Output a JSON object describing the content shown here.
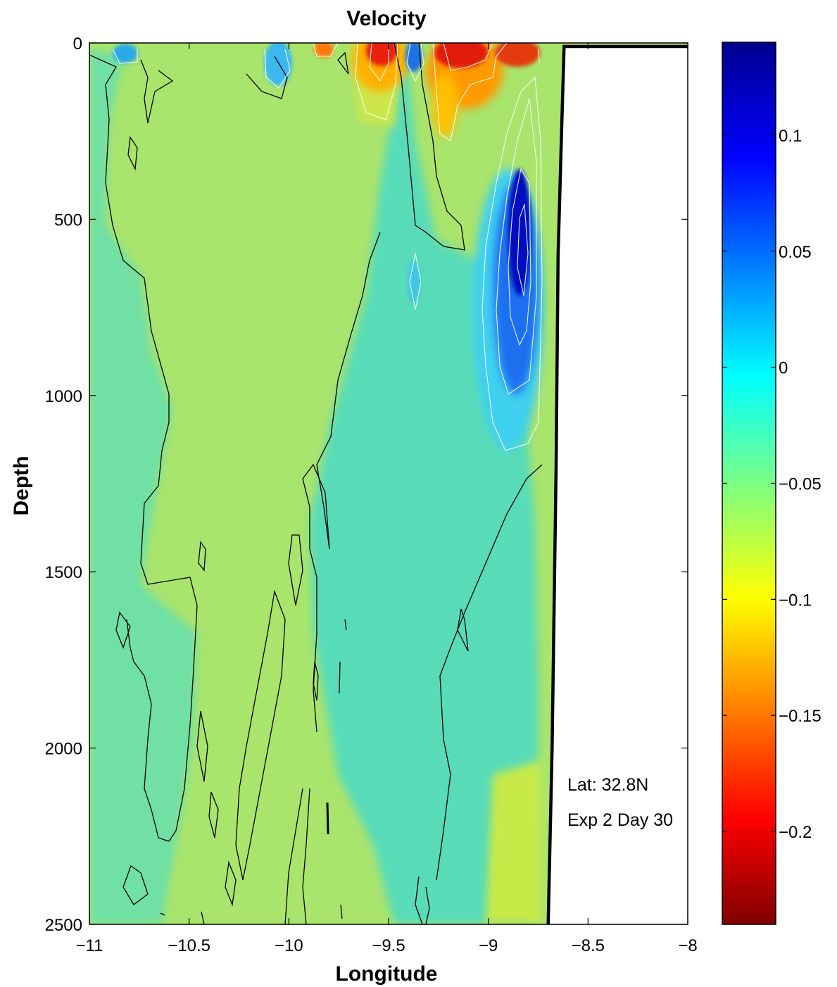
{
  "chart_data": [
    {
      "type": "heatmap",
      "title": "Velocity",
      "xlabel": "Longitude",
      "ylabel": "Depth",
      "xlim": [
        -11,
        -8
      ],
      "ylim": [
        0,
        2500
      ],
      "y_reversed": true,
      "grid": false,
      "x_ticks": [
        -11,
        -10.5,
        -10,
        -9.5,
        -9,
        -8.5,
        -8
      ],
      "x_tick_labels": [
        "−11",
        "−10.5",
        "−10",
        "−9.5",
        "−9",
        "−8.5",
        "−8"
      ],
      "y_ticks": [
        0,
        500,
        1000,
        1500,
        2000,
        2500
      ],
      "y_tick_labels": [
        "0",
        "500",
        "1000",
        "1500",
        "2000",
        "2500"
      ],
      "annotations": [
        "Lat: 32.8N",
        "Exp 2 Day 30"
      ],
      "land_boundary": {
        "x": [
          -8.7,
          -8.68,
          -8.66,
          -8.65,
          -8.63,
          -8.62,
          -8.0
        ],
        "y": [
          2500,
          2000,
          1200,
          600,
          200,
          10,
          10
        ],
        "color": "#000000"
      },
      "features": [
        {
          "kind": "negative_core",
          "x": -9.55,
          "y": 20,
          "value": -0.2
        },
        {
          "kind": "negative_core",
          "x": -9.1,
          "y": 30,
          "value": -0.2
        },
        {
          "kind": "negative_core",
          "x": -8.85,
          "y": 20,
          "value": -0.18
        },
        {
          "kind": "positive_core",
          "x": -8.82,
          "y": 500,
          "value": 0.13
        },
        {
          "kind": "positive_core",
          "x": -10.02,
          "y": 40,
          "value": 0.06
        },
        {
          "kind": "positive_core",
          "x": -9.36,
          "y": 30,
          "value": 0.08
        },
        {
          "kind": "positive_core",
          "x": -10.82,
          "y": 30,
          "value": 0.05
        }
      ]
    },
    {
      "type": "colorbar",
      "range": [
        -0.24,
        0.14
      ],
      "ticks": [
        0.1,
        0.05,
        0,
        -0.05,
        -0.1,
        -0.15,
        -0.2
      ],
      "tick_labels": [
        "0.1",
        "0.05",
        "0",
        "−0.05",
        "−0.1",
        "−0.15",
        "−0.2"
      ],
      "colormap": "jet"
    }
  ]
}
